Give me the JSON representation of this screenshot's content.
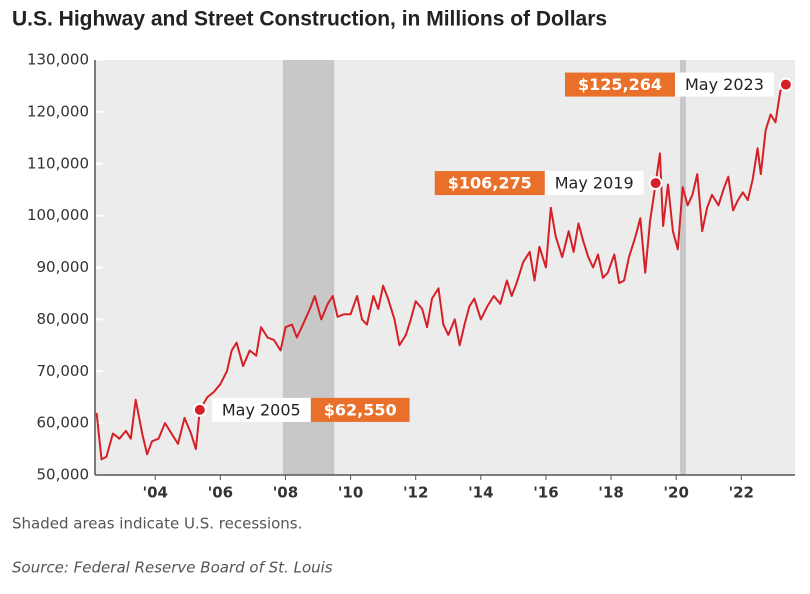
{
  "chart_data": {
    "type": "line",
    "title": "U.S. Highway and Street Construction, in Millions of Dollars",
    "note": "Shaded areas indicate U.S. recessions.",
    "source": "Source: Federal Reserve Board of St. Louis",
    "xlim": [
      2002.15,
      2023.65
    ],
    "xticks": [
      {
        "value": 2004,
        "label": "'04"
      },
      {
        "value": 2006,
        "label": "'06"
      },
      {
        "value": 2008,
        "label": "'08"
      },
      {
        "value": 2010,
        "label": "'10"
      },
      {
        "value": 2012,
        "label": "'12"
      },
      {
        "value": 2014,
        "label": "'14"
      },
      {
        "value": 2016,
        "label": "'16"
      },
      {
        "value": 2018,
        "label": "'18"
      },
      {
        "value": 2020,
        "label": "'20"
      },
      {
        "value": 2022,
        "label": "'22"
      }
    ],
    "ylim": [
      50000,
      130000
    ],
    "yticks": [
      {
        "value": 50000,
        "label": "50,000"
      },
      {
        "value": 60000,
        "label": "60,000"
      },
      {
        "value": 70000,
        "label": "70,000"
      },
      {
        "value": 80000,
        "label": "80,000"
      },
      {
        "value": 90000,
        "label": "90,000"
      },
      {
        "value": 100000,
        "label": "100,000"
      },
      {
        "value": 110000,
        "label": "110,000"
      },
      {
        "value": 120000,
        "label": "120,000"
      },
      {
        "value": 130000,
        "label": "130,000"
      }
    ],
    "grid": false,
    "recessions": [
      [
        2007.92,
        2009.5
      ],
      [
        2020.12,
        2020.3
      ]
    ],
    "series": [
      {
        "color": "#d62027",
        "x": [
          2002.2,
          2002.35,
          2002.5,
          2002.7,
          2002.9,
          2003.1,
          2003.25,
          2003.4,
          2003.6,
          2003.75,
          2003.9,
          2004.1,
          2004.3,
          2004.5,
          2004.7,
          2004.9,
          2005.1,
          2005.25,
          2005.37,
          2005.6,
          2005.8,
          2006.0,
          2006.2,
          2006.35,
          2006.5,
          2006.7,
          2006.9,
          2007.1,
          2007.25,
          2007.45,
          2007.65,
          2007.85,
          2008.0,
          2008.2,
          2008.35,
          2008.5,
          2008.75,
          2008.9,
          2009.1,
          2009.3,
          2009.45,
          2009.6,
          2009.8,
          2010.0,
          2010.2,
          2010.35,
          2010.5,
          2010.7,
          2010.85,
          2011.0,
          2011.15,
          2011.35,
          2011.5,
          2011.7,
          2011.85,
          2012.0,
          2012.2,
          2012.35,
          2012.5,
          2012.7,
          2012.85,
          2013.0,
          2013.2,
          2013.35,
          2013.5,
          2013.65,
          2013.8,
          2014.0,
          2014.2,
          2014.4,
          2014.6,
          2014.8,
          2014.95,
          2015.1,
          2015.3,
          2015.5,
          2015.65,
          2015.8,
          2016.0,
          2016.15,
          2016.3,
          2016.5,
          2016.7,
          2016.85,
          2017.0,
          2017.15,
          2017.3,
          2017.45,
          2017.6,
          2017.75,
          2017.9,
          2018.1,
          2018.25,
          2018.4,
          2018.55,
          2018.75,
          2018.9,
          2019.05,
          2019.2,
          2019.37,
          2019.5,
          2019.6,
          2019.75,
          2019.9,
          2020.05,
          2020.2,
          2020.35,
          2020.5,
          2020.65,
          2020.8,
          2020.95,
          2021.1,
          2021.3,
          2021.45,
          2021.6,
          2021.75,
          2021.9,
          2022.05,
          2022.2,
          2022.35,
          2022.5,
          2022.6,
          2022.75,
          2022.9,
          2023.05,
          2023.2,
          2023.37
        ],
        "values": [
          62000,
          53000,
          53500,
          58000,
          57000,
          58500,
          57000,
          64500,
          58000,
          54000,
          56500,
          57000,
          60000,
          58000,
          56000,
          61000,
          58000,
          55000,
          62550,
          65000,
          66000,
          67500,
          70000,
          74000,
          75500,
          71000,
          74000,
          73000,
          78500,
          76500,
          76000,
          74000,
          78500,
          79000,
          76500,
          78500,
          82000,
          84500,
          80000,
          83000,
          84500,
          80500,
          81000,
          81000,
          84500,
          80000,
          79000,
          84500,
          82000,
          86500,
          84000,
          80000,
          75000,
          77000,
          80000,
          83500,
          82000,
          78500,
          84000,
          86000,
          79000,
          77000,
          80000,
          75000,
          79000,
          82500,
          84000,
          80000,
          82500,
          84500,
          83000,
          87500,
          84500,
          87000,
          91000,
          93000,
          87500,
          94000,
          90000,
          101500,
          96000,
          92000,
          97000,
          93000,
          98500,
          95000,
          92000,
          90000,
          92500,
          88000,
          89000,
          92500,
          87000,
          87500,
          92000,
          96000,
          99500,
          89000,
          99000,
          106275,
          112000,
          98000,
          106000,
          97000,
          93500,
          105500,
          102000,
          104000,
          108000,
          97000,
          101500,
          104000,
          102000,
          105000,
          107500,
          101000,
          103000,
          104500,
          103000,
          107000,
          113000,
          108000,
          116500,
          119500,
          118000,
          124000,
          125264
        ]
      }
    ],
    "annotations": [
      {
        "x": 2005.37,
        "y": 62550,
        "label": "May 2005",
        "value_label": "$62,550"
      },
      {
        "x": 2019.37,
        "y": 106275,
        "label": "May 2019",
        "value_label": "$106,275"
      },
      {
        "x": 2023.37,
        "y": 125264,
        "label": "May 2023",
        "value_label": "$125,264"
      }
    ]
  }
}
